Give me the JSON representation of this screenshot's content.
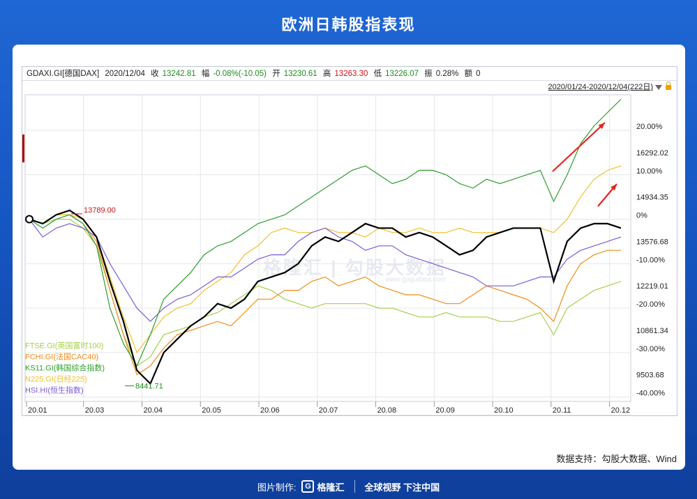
{
  "title": "欧洲日韩股指表现",
  "quote_bar": {
    "symbol": "GDAXI.GI[德国DAX]",
    "date": "2020/12/04",
    "close_label": "收",
    "close": "13242.81",
    "change_label": "幅",
    "change": "-0.08%(-10.05)",
    "open_label": "开",
    "open": "13230.61",
    "high_label": "高",
    "high": "13263.30",
    "low_label": "低",
    "low": "13226.07",
    "amp_label": "振",
    "amp": "0.28%",
    "vol_label": "额",
    "vol": "0"
  },
  "range": "2020/01/24-2020/12/04(222日)",
  "source_note": "数据支持：勾股大数据、Wind",
  "footer": {
    "made_by": "图片制作:",
    "brand": "格隆汇",
    "slogan": "全球视野 下注中国"
  },
  "watermark": "格隆汇 | 勾股大数据",
  "watermark_sub": "www.gogudata.com",
  "chart_data": {
    "type": "line",
    "x_ticks": [
      "20.01",
      "20.03",
      "20.04",
      "20.05",
      "20.06",
      "20.07",
      "20.08",
      "20.09",
      "20.10",
      "20.11",
      "20.12"
    ],
    "y_pct_ticks": [
      "20.00%",
      "10.00%",
      "0%",
      "-10.00%",
      "-20.00%",
      "-30.00%",
      "-40.00%"
    ],
    "y_pct_values": [
      20,
      10,
      0,
      -10,
      -20,
      -30,
      -40
    ],
    "y_price_ticks": [
      "16292.02",
      "14934.35",
      "13576.68",
      "12219.01",
      "10861.34",
      "9503.68"
    ],
    "y_pct_range": [
      -41,
      28
    ],
    "annotations": {
      "high": "13789.00",
      "low": "8441.71"
    },
    "colors": {
      "DAX": "#000000",
      "FTSE": "#a7cf4a",
      "FCHI": "#f08c18",
      "KS11": "#2f9c2f",
      "N225": "#f2c02c",
      "HSI": "#7a5cd6",
      "accent": "#e8231c"
    },
    "series": [
      {
        "key": "DAX",
        "name": "",
        "values": [
          0,
          -1,
          1,
          2,
          0,
          -4,
          -14,
          -23,
          -34,
          -37,
          -30,
          -27,
          -24,
          -22,
          -19,
          -20,
          -18,
          -14,
          -13,
          -12,
          -10,
          -6,
          -4,
          -5,
          -3,
          -1,
          -2,
          -2,
          -4,
          -3,
          -4,
          -6,
          -8,
          -7,
          -4,
          -3,
          -2,
          -2,
          -2,
          -14,
          -5,
          -2,
          -1,
          -1,
          -2
        ]
      },
      {
        "key": "FTSE",
        "name": "FTSE.GI(英国富时100)",
        "values": [
          0,
          -1,
          0,
          0,
          -2,
          -6,
          -16,
          -26,
          -33,
          -31,
          -26,
          -25,
          -24,
          -22,
          -21,
          -19,
          -17,
          -15,
          -16,
          -18,
          -19,
          -20,
          -19,
          -19,
          -19,
          -19,
          -20,
          -20,
          -21,
          -22,
          -22,
          -21,
          -22,
          -22,
          -22,
          -23,
          -23,
          -22,
          -21,
          -26,
          -20,
          -18,
          -16,
          -15,
          -14
        ]
      },
      {
        "key": "FCHI",
        "name": "FCHI.GI(法国CAC40)",
        "values": [
          0,
          -1,
          1,
          1,
          -1,
          -5,
          -16,
          -26,
          -35,
          -33,
          -29,
          -26,
          -25,
          -24,
          -23,
          -24,
          -21,
          -18,
          -18,
          -16,
          -16,
          -14,
          -13,
          -15,
          -14,
          -13,
          -15,
          -16,
          -17,
          -17,
          -18,
          -19,
          -19,
          -17,
          -15,
          -16,
          -17,
          -18,
          -20,
          -23,
          -15,
          -10,
          -8,
          -7,
          -7
        ]
      },
      {
        "key": "KS11",
        "name": "KS11.GI(韩国综合指数)",
        "values": [
          0,
          -2,
          0,
          1,
          -1,
          -6,
          -20,
          -28,
          -33,
          -26,
          -18,
          -15,
          -12,
          -8,
          -6,
          -5,
          -3,
          -1,
          0,
          1,
          3,
          5,
          7,
          9,
          11,
          12,
          10,
          8,
          9,
          11,
          11,
          10,
          8,
          7,
          9,
          8,
          9,
          10,
          11,
          4,
          10,
          17,
          21,
          24,
          27
        ]
      },
      {
        "key": "N225",
        "name": "N225.GI(日经225)",
        "values": [
          0,
          -1,
          1,
          1,
          0,
          -4,
          -13,
          -22,
          -30,
          -26,
          -22,
          -20,
          -19,
          -16,
          -14,
          -12,
          -8,
          -6,
          -3,
          -2,
          -3,
          -3,
          -2,
          -3,
          -3,
          -4,
          -2,
          -3,
          -3,
          -2,
          -3,
          -3,
          -2,
          -3,
          -3,
          -3,
          -2,
          -2,
          -2,
          -3,
          0,
          5,
          9,
          11,
          12
        ]
      },
      {
        "key": "HSI",
        "name": "HSI.HI(恒生指数)",
        "values": [
          0,
          -4,
          -2,
          -1,
          -2,
          -4,
          -10,
          -15,
          -20,
          -23,
          -20,
          -18,
          -17,
          -15,
          -13,
          -13,
          -11,
          -9,
          -8,
          -8,
          -5,
          -3,
          -2,
          -4,
          -5,
          -7,
          -6,
          -6,
          -8,
          -9,
          -10,
          -11,
          -12,
          -13,
          -15,
          -15,
          -15,
          -14,
          -13,
          -13,
          -9,
          -7,
          -6,
          -5,
          -4
        ]
      }
    ]
  }
}
